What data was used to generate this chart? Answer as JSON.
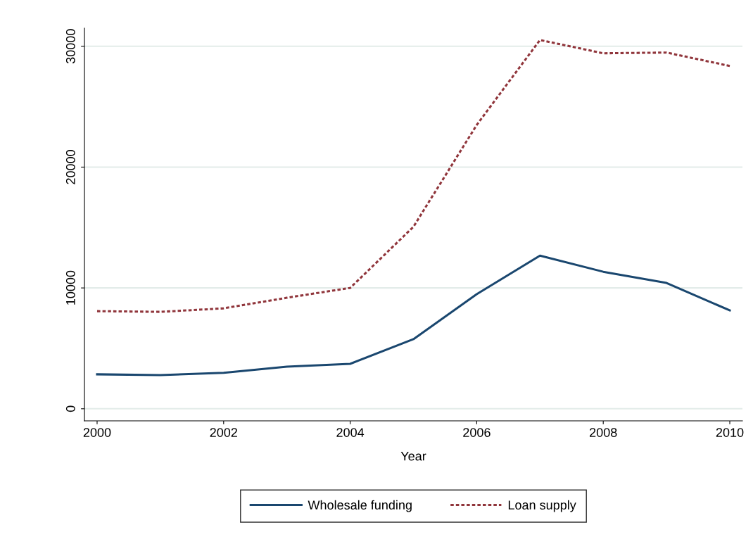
{
  "chart_data": {
    "type": "line",
    "xlabel": "Year",
    "x": [
      2000,
      2001,
      2002,
      2003,
      2004,
      2005,
      2006,
      2007,
      2008,
      2009,
      2010
    ],
    "series": [
      {
        "name": "Wholesale funding",
        "color": "#1a476f",
        "line_style": "solid",
        "values": [
          2850,
          2790,
          2970,
          3490,
          3720,
          5760,
          9480,
          12670,
          11340,
          10410,
          8140
        ]
      },
      {
        "name": "Loan supply",
        "color": "#90353b",
        "line_style": "dotted",
        "values": [
          8080,
          8020,
          8310,
          9190,
          10000,
          15060,
          23490,
          30520,
          29420,
          29480,
          28370
        ]
      }
    ],
    "xlim": [
      1999.8,
      2010.2
    ],
    "xticks": [
      2000,
      2002,
      2004,
      2006,
      2008,
      2010
    ],
    "ylim": [
      -1000,
      31500
    ],
    "yticks": [
      0,
      10000,
      20000,
      30000
    ],
    "grid": "y",
    "legend": "bottom",
    "marker": "none"
  }
}
